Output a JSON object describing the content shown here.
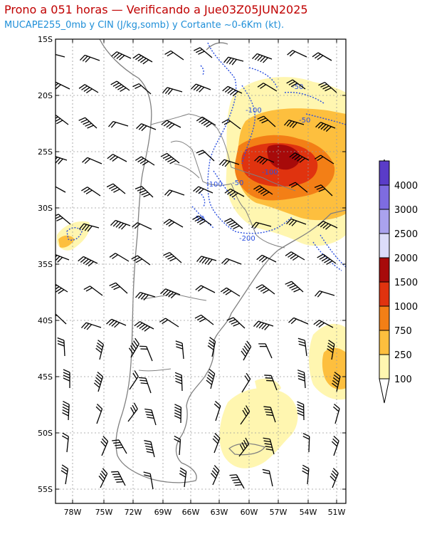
{
  "title": "Prono a 051 horas — Verificando a Jue03Z05JUN2025",
  "subtitle": "MUCAPE255_0mb y CIN (J/kg,somb) y Cortante ~0-6Km (kt).",
  "lat_ticks": [
    "15S",
    "20S",
    "25S",
    "30S",
    "35S",
    "40S",
    "45S",
    "50S",
    "55S"
  ],
  "lon_ticks": [
    "78W",
    "75W",
    "72W",
    "69W",
    "66W",
    "63W",
    "60W",
    "57W",
    "54W",
    "51W"
  ],
  "colorbar": {
    "levels": [
      "100",
      "250",
      "750",
      "1000",
      "1500",
      "2000",
      "2500",
      "3000",
      "4000"
    ],
    "colors": [
      "#fff6b0",
      "#fdbf3e",
      "#f37f16",
      "#e0330f",
      "#a70a0a",
      "#dcdcfa",
      "#aaa2ee",
      "#7e6ce0",
      "#5a3cc8"
    ]
  },
  "cin_labels": [
    "-50",
    "-100",
    "-50",
    "-100",
    "-50",
    "-50",
    "-200",
    "-100"
  ],
  "colors": {
    "title": "#c00000",
    "subtitle": "#1f8fd8",
    "cin": "#2a4fe0",
    "border": "#808080"
  }
}
